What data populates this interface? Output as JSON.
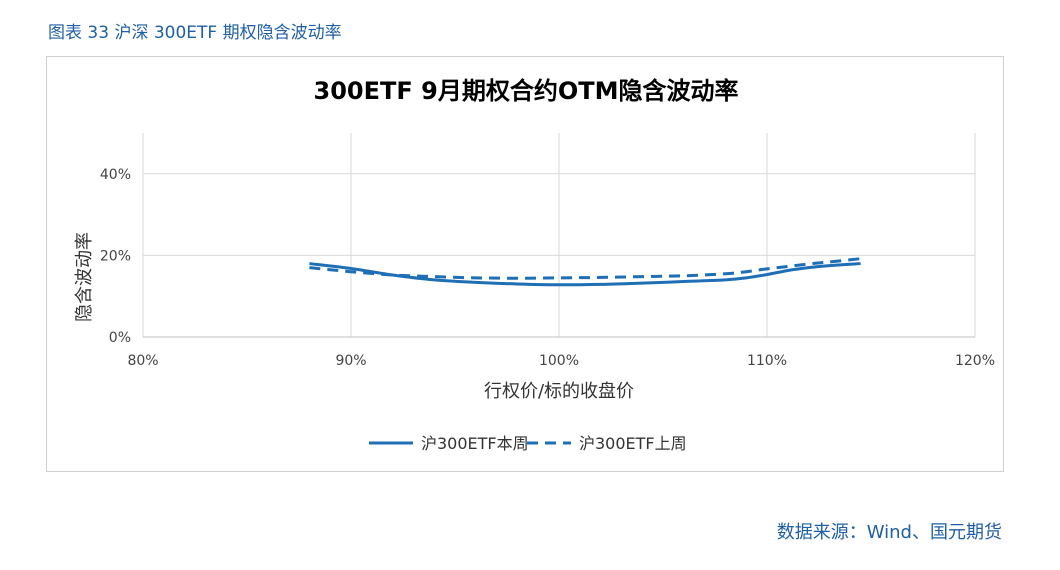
{
  "caption": "图表 33 沪深 300ETF 期权隐含波动率",
  "source": "数据来源：Wind、国元期货",
  "colors": {
    "accent": "#1f5fa6",
    "series": "#1f6fb6",
    "grid": "#d9d9d9"
  },
  "chart_data": {
    "type": "line",
    "title": "300ETF 9月期权合约OTM隐含波动率",
    "xlabel": "行权价/标的收盘价",
    "ylabel": "隐含波动率",
    "xlim": [
      80,
      120
    ],
    "ylim": [
      0,
      50
    ],
    "x_ticks": [
      80,
      90,
      100,
      110,
      120
    ],
    "x_tick_labels": [
      "80%",
      "90%",
      "100%",
      "110%",
      "120%"
    ],
    "y_ticks": [
      0,
      20,
      40
    ],
    "y_tick_labels": [
      "0%",
      "20%",
      "40%"
    ],
    "grid": true,
    "legend": "bottom",
    "series": [
      {
        "name": "沪300ETF本周",
        "style": "solid",
        "x": [
          88,
          90,
          92,
          94,
          96,
          98,
          100,
          102,
          104,
          106,
          108,
          109,
          110,
          111,
          112,
          113,
          114.5
        ],
        "y": [
          18,
          16.8,
          15.2,
          14.0,
          13.4,
          13.0,
          12.8,
          12.9,
          13.2,
          13.6,
          14.0,
          14.5,
          15.3,
          16.3,
          17.0,
          17.5,
          18
        ]
      },
      {
        "name": "沪300ETF上周",
        "style": "dashed",
        "x": [
          88,
          90,
          92,
          94,
          96,
          98,
          100,
          102,
          104,
          106,
          108,
          109,
          110,
          111,
          112,
          113,
          114.5
        ],
        "y": [
          17,
          16.0,
          15.2,
          14.8,
          14.5,
          14.4,
          14.5,
          14.6,
          14.8,
          15.0,
          15.5,
          16.0,
          16.7,
          17.3,
          17.9,
          18.4,
          19.2
        ]
      }
    ]
  }
}
